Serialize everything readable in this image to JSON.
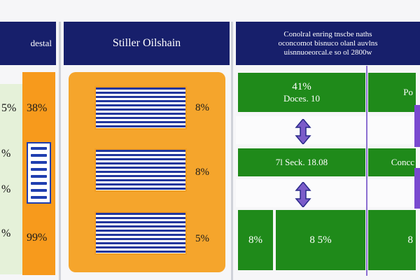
{
  "panels": {
    "left": {
      "title": "destal"
    },
    "middle": {
      "title": "Stiller Oilshain"
    },
    "right": {
      "title_lines": [
        "Conolral enring tnscbe naths",
        "oconcomot bisnuco olanl auvlns",
        "uisnnuoeorcal.e so ol 2800w"
      ]
    }
  },
  "left_column": {
    "labels": [
      "5%",
      "%",
      "%",
      "%"
    ],
    "orange_labels": [
      "38%",
      "99%"
    ],
    "barcode_icon": "barcode-icon"
  },
  "middle_column": {
    "percent_labels": [
      "8%",
      "8%",
      "5%"
    ]
  },
  "right_column": {
    "rows": [
      {
        "value": "41%",
        "label": "Doces. 10",
        "partial": "Po"
      },
      {
        "value": "",
        "label": "7l Seck. 18.08",
        "partial": "Concc"
      },
      {
        "value": "8%",
        "label": "",
        "partial": ""
      },
      {
        "value": "8 5%",
        "label": "",
        "partial": "8"
      }
    ],
    "arrow_icon": "up-down-arrow-icon"
  },
  "colors": {
    "header": "#171f6b",
    "orange": "#f79a1c",
    "green": "#1f8a1a",
    "stripe_blue": "#22369d",
    "purple": "#7a4ad0"
  }
}
